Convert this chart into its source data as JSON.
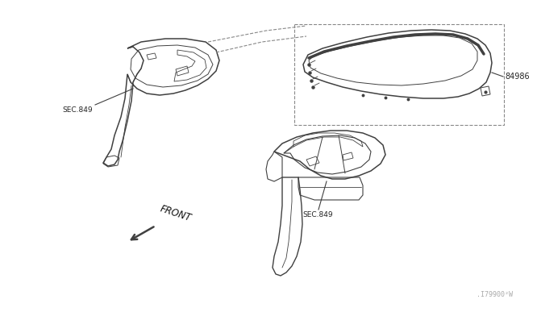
{
  "background_color": "#ffffff",
  "line_color": "#404040",
  "dashed_color": "#888888",
  "text_color": "#222222",
  "fig_width": 6.4,
  "fig_height": 3.72,
  "watermark": ".I79900²W",
  "label_sec849_left": "SEC.849",
  "label_sec849_right": "SEC.849",
  "label_84986": "84986",
  "label_front": "FRONT"
}
